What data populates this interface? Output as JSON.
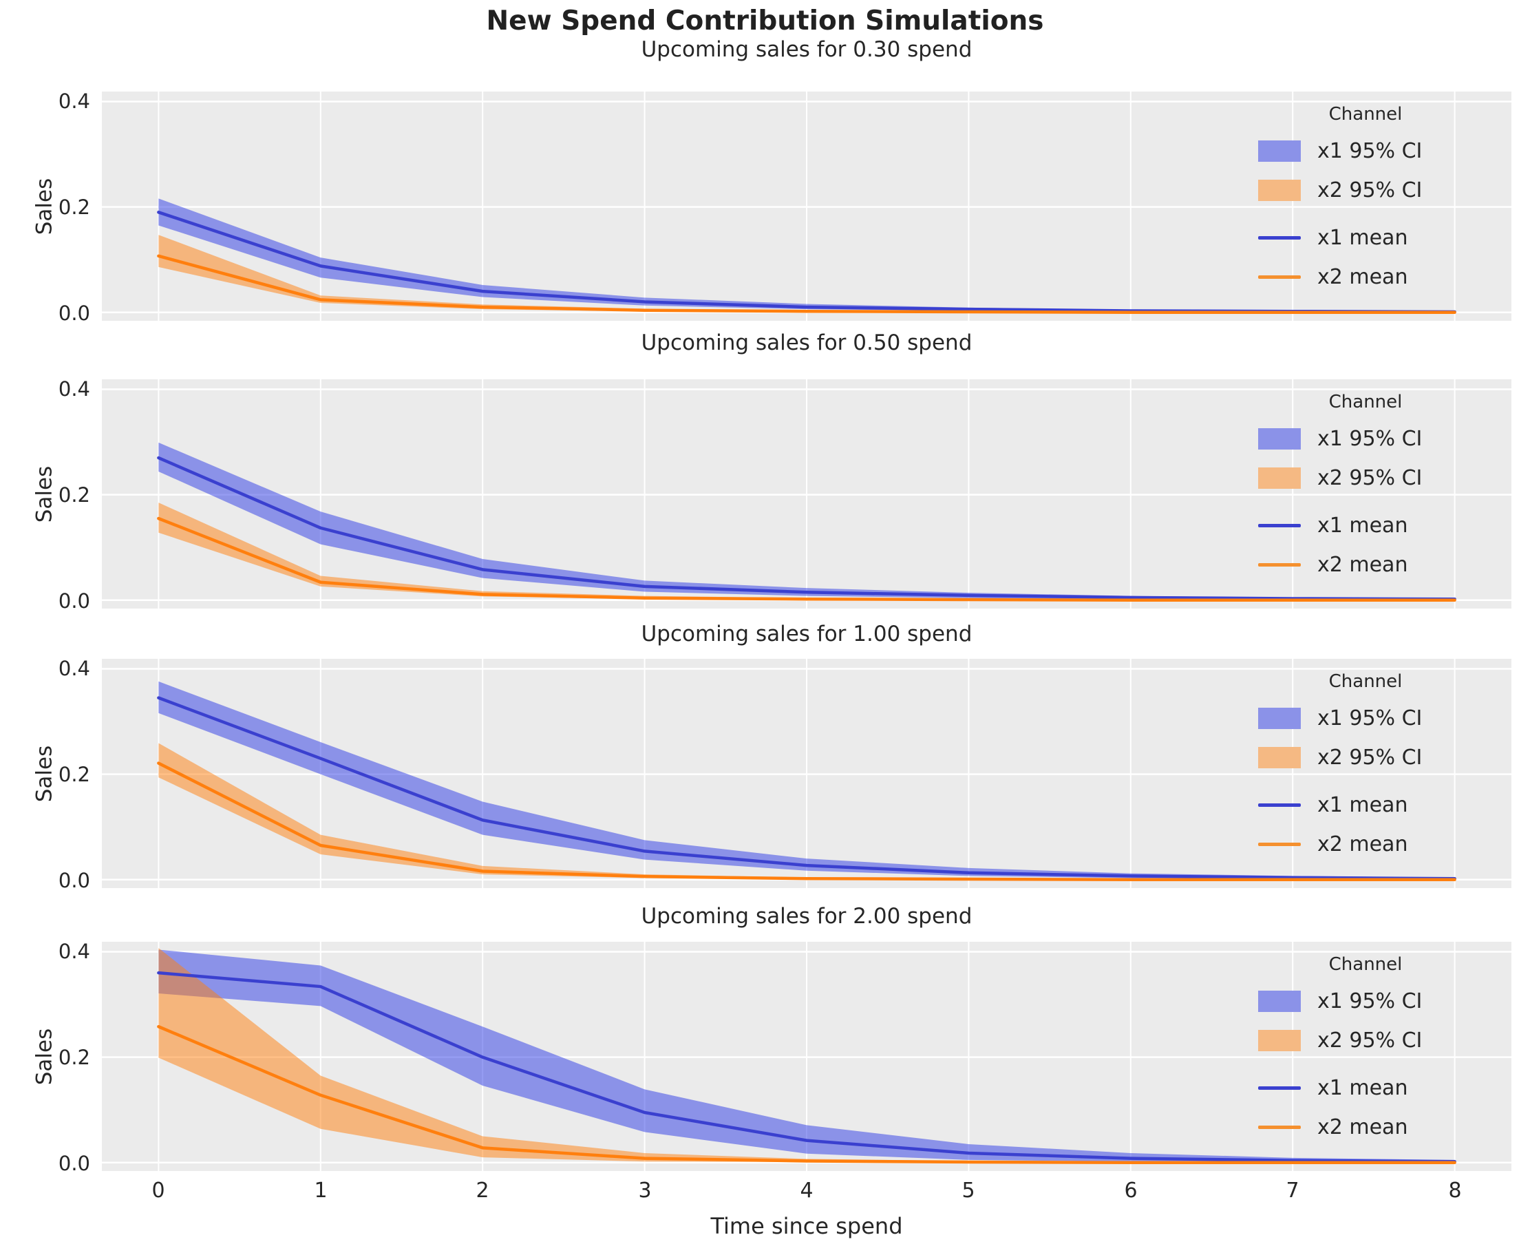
{
  "figure": {
    "title": "New Spend Contribution Simulations"
  },
  "axis": {
    "ylabel": "Sales",
    "xlabel": "Time since spend",
    "yticks": [
      "0.4",
      "0.2",
      "0.0"
    ],
    "xticks": [
      "0",
      "1",
      "2",
      "3",
      "4",
      "5",
      "6",
      "7",
      "8"
    ]
  },
  "legend": {
    "title": "Channel",
    "items": [
      {
        "label": "x1 95% CI",
        "type": "patch",
        "color": "#8b92e8"
      },
      {
        "label": "x2 95% CI",
        "type": "patch",
        "color": "#f5b983"
      },
      {
        "label": "x1 mean",
        "type": "line",
        "color": "#3a40cf"
      },
      {
        "label": "x2 mean",
        "type": "line",
        "color": "#f5902e"
      }
    ]
  },
  "style": {
    "axes_background": "#ebebeb",
    "grid_color": "#ffffff",
    "x1_line_color": "#3a40cf",
    "x1_band_color": "#2b39e5",
    "x2_line_color": "#ff7f0e",
    "x2_band_color": "#ff7f0e",
    "band_opacity": 0.5
  },
  "chart_data": [
    {
      "type": "line",
      "title": "Upcoming sales for 0.30 spend",
      "xlabel": "Time since spend",
      "ylabel": "Sales",
      "x": [
        0,
        1,
        2,
        3,
        4,
        5,
        6,
        7,
        8
      ],
      "xlim": [
        -0.35,
        8.35
      ],
      "ylim": [
        -0.016,
        0.419
      ],
      "grid": true,
      "legend_position": "upper right",
      "series": [
        {
          "name": "x1",
          "mean": [
            0.19,
            0.088,
            0.04,
            0.02,
            0.01,
            0.006,
            0.003,
            0.002,
            0.001
          ],
          "ci_lower": [
            0.165,
            0.066,
            0.029,
            0.013,
            0.006,
            0.003,
            0.001,
            0.001,
            0.0
          ],
          "ci_upper": [
            0.216,
            0.104,
            0.052,
            0.028,
            0.016,
            0.009,
            0.005,
            0.003,
            0.002
          ]
        },
        {
          "name": "x2",
          "mean": [
            0.107,
            0.024,
            0.01,
            0.004,
            0.002,
            0.001,
            0.0,
            0.0,
            0.0
          ],
          "ci_lower": [
            0.086,
            0.018,
            0.006,
            0.002,
            0.001,
            0.0,
            0.0,
            0.0,
            0.0
          ],
          "ci_upper": [
            0.147,
            0.032,
            0.015,
            0.007,
            0.003,
            0.002,
            0.001,
            0.0,
            0.0
          ]
        }
      ]
    },
    {
      "type": "line",
      "title": "Upcoming sales for 0.50 spend",
      "xlabel": "Time since spend",
      "ylabel": "Sales",
      "x": [
        0,
        1,
        2,
        3,
        4,
        5,
        6,
        7,
        8
      ],
      "xlim": [
        -0.35,
        8.35
      ],
      "ylim": [
        -0.016,
        0.419
      ],
      "grid": true,
      "legend_position": "upper right",
      "series": [
        {
          "name": "x1",
          "mean": [
            0.27,
            0.137,
            0.058,
            0.026,
            0.015,
            0.009,
            0.005,
            0.003,
            0.002
          ],
          "ci_lower": [
            0.244,
            0.106,
            0.042,
            0.016,
            0.008,
            0.004,
            0.002,
            0.001,
            0.001
          ],
          "ci_upper": [
            0.299,
            0.168,
            0.078,
            0.037,
            0.023,
            0.014,
            0.008,
            0.005,
            0.003
          ]
        },
        {
          "name": "x2",
          "mean": [
            0.155,
            0.034,
            0.011,
            0.004,
            0.002,
            0.001,
            0.0,
            0.0,
            0.0
          ],
          "ci_lower": [
            0.128,
            0.026,
            0.007,
            0.002,
            0.001,
            0.0,
            0.0,
            0.0,
            0.0
          ],
          "ci_upper": [
            0.185,
            0.046,
            0.017,
            0.008,
            0.004,
            0.002,
            0.001,
            0.0,
            0.0
          ]
        }
      ]
    },
    {
      "type": "line",
      "title": "Upcoming sales for 1.00 spend",
      "xlabel": "Time since spend",
      "ylabel": "Sales",
      "x": [
        0,
        1,
        2,
        3,
        4,
        5,
        6,
        7,
        8
      ],
      "xlim": [
        -0.35,
        8.35
      ],
      "ylim": [
        -0.016,
        0.419
      ],
      "grid": true,
      "legend_position": "upper right",
      "series": [
        {
          "name": "x1",
          "mean": [
            0.345,
            0.23,
            0.113,
            0.054,
            0.027,
            0.013,
            0.007,
            0.004,
            0.002
          ],
          "ci_lower": [
            0.316,
            0.2,
            0.085,
            0.038,
            0.017,
            0.007,
            0.003,
            0.001,
            0.001
          ],
          "ci_upper": [
            0.376,
            0.261,
            0.148,
            0.075,
            0.04,
            0.022,
            0.012,
            0.007,
            0.004
          ]
        },
        {
          "name": "x2",
          "mean": [
            0.221,
            0.065,
            0.016,
            0.006,
            0.002,
            0.001,
            0.0,
            0.0,
            0.0
          ],
          "ci_lower": [
            0.194,
            0.048,
            0.01,
            0.003,
            0.001,
            0.0,
            0.0,
            0.0,
            0.0
          ],
          "ci_upper": [
            0.259,
            0.085,
            0.026,
            0.01,
            0.004,
            0.002,
            0.001,
            0.0,
            0.0
          ]
        }
      ]
    },
    {
      "type": "line",
      "title": "Upcoming sales for 2.00 spend",
      "xlabel": "Time since spend",
      "ylabel": "Sales",
      "x": [
        0,
        1,
        2,
        3,
        4,
        5,
        6,
        7,
        8
      ],
      "xlim": [
        -0.35,
        8.35
      ],
      "ylim": [
        -0.016,
        0.419
      ],
      "grid": true,
      "legend_position": "upper right",
      "series": [
        {
          "name": "x1",
          "mean": [
            0.36,
            0.334,
            0.2,
            0.095,
            0.042,
            0.018,
            0.008,
            0.004,
            0.002
          ],
          "ci_lower": [
            0.321,
            0.297,
            0.146,
            0.058,
            0.017,
            0.005,
            0.002,
            0.001,
            0.0
          ],
          "ci_upper": [
            0.404,
            0.374,
            0.258,
            0.139,
            0.071,
            0.035,
            0.018,
            0.009,
            0.005
          ]
        },
        {
          "name": "x2",
          "mean": [
            0.258,
            0.128,
            0.028,
            0.008,
            0.003,
            0.001,
            0.0,
            0.0,
            0.0
          ],
          "ci_lower": [
            0.199,
            0.064,
            0.01,
            0.002,
            0.001,
            0.0,
            0.0,
            0.0,
            0.0
          ],
          "ci_upper": [
            0.407,
            0.165,
            0.05,
            0.018,
            0.007,
            0.003,
            0.001,
            0.0,
            0.0
          ]
        }
      ]
    }
  ]
}
